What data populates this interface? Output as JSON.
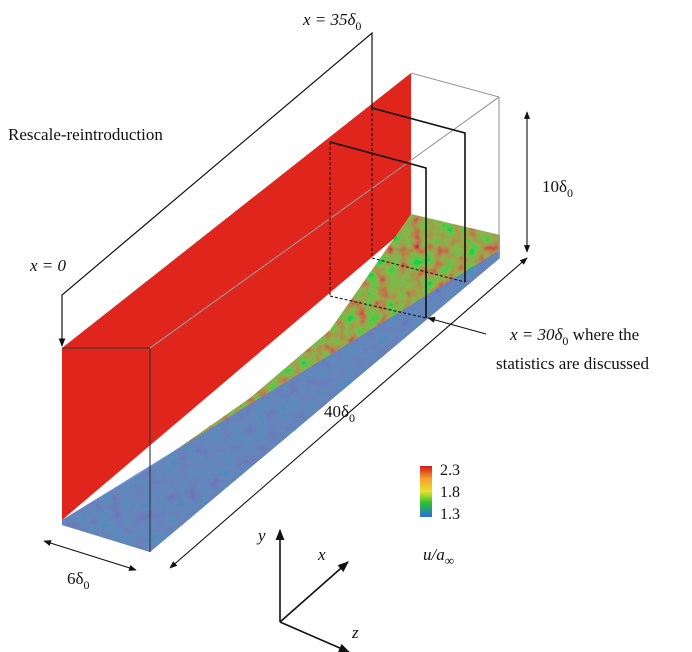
{
  "labels": {
    "x35": "x = 35δ0",
    "x35_base": "x = 35δ",
    "x35_sub": "0",
    "rescale": "Rescale-reintroduction",
    "x0": "x = 0",
    "height": "10δ0",
    "height_base": "10δ",
    "height_sub": "0",
    "x30": "x = 30δ0 where the",
    "x30_base": "x = 30δ",
    "x30_sub": "0",
    "x30_tail": " where the",
    "x30_line2": "statistics are discussed",
    "length": "40δ0",
    "length_base": "40δ",
    "length_sub": "0",
    "width": "6δ0",
    "width_base": "6δ",
    "width_sub": "0"
  },
  "colorbar": {
    "max": "2.3",
    "mid": "1.8",
    "min": "1.3",
    "label": "u/a∞",
    "label_base": "u/a",
    "label_sub": "∞",
    "colors": [
      "#d7191c",
      "#f4a02a",
      "#e8e030",
      "#2ec02e",
      "#2a6de0"
    ]
  },
  "axes": {
    "y": "y",
    "x": "x",
    "z": "z"
  },
  "colors": {
    "inflow_plane": "#e0251c",
    "turbulence_green": "#3aa83a",
    "turbulence_red": "#c63a1e",
    "wall_blue": "#5b7fcf"
  }
}
